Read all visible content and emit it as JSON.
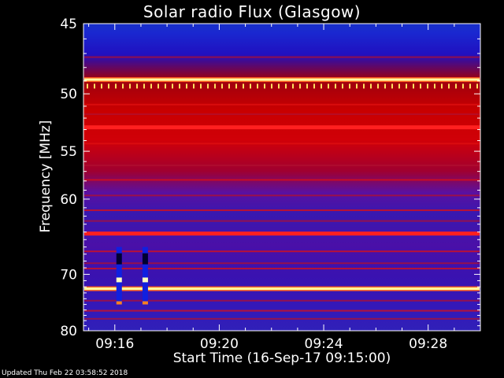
{
  "chart_data": {
    "type": "heatmap",
    "title": "Solar radio Flux (Glasgow)",
    "xlabel": "Start Time (16-Sep-17 09:15:00)",
    "ylabel": "Frequency [MHz]",
    "x_ticks": [
      "09:16",
      "09:20",
      "09:24",
      "09:28"
    ],
    "x_tick_minutes": [
      1,
      5,
      9,
      13
    ],
    "xlim_minutes": [
      -0.2,
      15.0
    ],
    "y_ticks": [
      45,
      50,
      55,
      60,
      70,
      80
    ],
    "ylim": [
      45,
      80
    ],
    "y_scale": "reciprocal",
    "colormap": "blue-red-yellow-white",
    "colors": {
      "background": "#000000",
      "low": "#2a10a0",
      "mid": "#b00000",
      "high": "#ff2020",
      "peak": "#ffffa0"
    },
    "features": [
      {
        "label": "strong continuous emission",
        "freq_mhz": 48.9,
        "level": "peak"
      },
      {
        "label": "strong continuous emission",
        "freq_mhz": 52.8,
        "level": "high"
      },
      {
        "label": "strong continuous emission",
        "freq_mhz": 64.2,
        "level": "high"
      },
      {
        "label": "strong continuous emission",
        "freq_mhz": 72.3,
        "level": "peak"
      },
      {
        "label": "short burst",
        "time": "09:16",
        "freq_range_mhz": [
          66,
          75
        ]
      },
      {
        "label": "short burst",
        "time": "09:17",
        "freq_range_mhz": [
          66,
          75
        ]
      }
    ]
  },
  "footer": {
    "updated": "Updated Thu Feb 22 03:58:52 2018"
  }
}
